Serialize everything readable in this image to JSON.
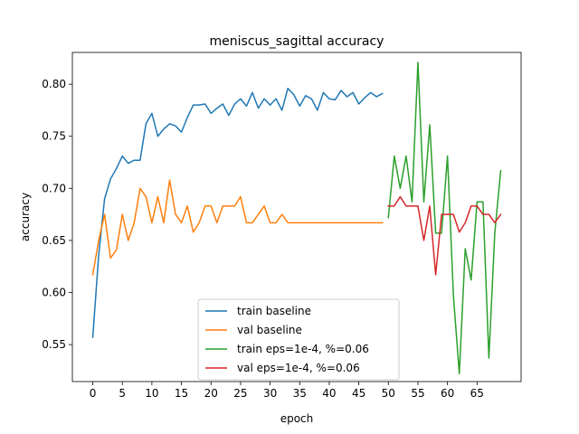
{
  "chart_data": {
    "type": "line",
    "title": "meniscus_sagittal accuracy",
    "xlabel": "epoch",
    "ylabel": "accuracy",
    "xlim": [
      -3.45,
      72.45
    ],
    "ylim": [
      0.5145,
      0.8305
    ],
    "xticks": [
      0,
      5,
      10,
      15,
      20,
      25,
      30,
      35,
      40,
      45,
      50,
      55,
      60,
      65
    ],
    "yticks": [
      0.55,
      0.6,
      0.65,
      0.7,
      0.75,
      0.8
    ],
    "ytick_labels": [
      "0.55",
      "0.60",
      "0.65",
      "0.70",
      "0.75",
      "0.80"
    ],
    "legend_position": "lower center",
    "series": [
      {
        "name": "train baseline",
        "color": "#1f77b4",
        "x": [
          0,
          1,
          2,
          3,
          4,
          5,
          6,
          7,
          8,
          9,
          10,
          11,
          12,
          13,
          14,
          15,
          16,
          17,
          18,
          19,
          20,
          21,
          22,
          23,
          24,
          25,
          26,
          27,
          28,
          29,
          30,
          31,
          32,
          33,
          34,
          35,
          36,
          37,
          38,
          39,
          40,
          41,
          42,
          43,
          44,
          45,
          46,
          47,
          48,
          49
        ],
        "y": [
          0.557,
          0.636,
          0.69,
          0.709,
          0.719,
          0.731,
          0.724,
          0.727,
          0.727,
          0.762,
          0.772,
          0.75,
          0.757,
          0.762,
          0.76,
          0.754,
          0.768,
          0.78,
          0.78,
          0.781,
          0.772,
          0.777,
          0.781,
          0.77,
          0.781,
          0.786,
          0.779,
          0.792,
          0.777,
          0.786,
          0.78,
          0.786,
          0.775,
          0.796,
          0.79,
          0.779,
          0.789,
          0.786,
          0.775,
          0.792,
          0.786,
          0.785,
          0.794,
          0.788,
          0.792,
          0.781,
          0.787,
          0.792,
          0.788,
          0.791
        ]
      },
      {
        "name": "val baseline",
        "color": "#ff7f0e",
        "x": [
          0,
          1,
          2,
          3,
          4,
          5,
          6,
          7,
          8,
          9,
          10,
          11,
          12,
          13,
          14,
          15,
          16,
          17,
          18,
          19,
          20,
          21,
          22,
          23,
          24,
          25,
          26,
          27,
          28,
          29,
          30,
          31,
          32,
          33,
          34,
          35,
          36,
          37,
          38,
          39,
          40,
          41,
          42,
          43,
          44,
          45,
          46,
          47,
          48,
          49
        ],
        "y": [
          0.617,
          0.65,
          0.675,
          0.633,
          0.641,
          0.675,
          0.65,
          0.667,
          0.7,
          0.692,
          0.667,
          0.692,
          0.667,
          0.708,
          0.675,
          0.667,
          0.683,
          0.658,
          0.667,
          0.683,
          0.683,
          0.667,
          0.683,
          0.683,
          0.683,
          0.692,
          0.667,
          0.667,
          0.675,
          0.683,
          0.667,
          0.667,
          0.675,
          0.667,
          0.667,
          0.667,
          0.667,
          0.667,
          0.667,
          0.667,
          0.667,
          0.667,
          0.667,
          0.667,
          0.667,
          0.667,
          0.667,
          0.667,
          0.667,
          0.667
        ]
      },
      {
        "name": "train eps=1e-4, %=0.06",
        "color": "#2ca02c",
        "x": [
          50,
          51,
          52,
          53,
          54,
          55,
          56,
          57,
          58,
          59,
          60,
          61,
          62,
          63,
          64,
          65,
          66,
          67,
          68,
          69
        ],
        "y": [
          0.672,
          0.731,
          0.7,
          0.731,
          0.687,
          0.821,
          0.687,
          0.761,
          0.657,
          0.657,
          0.731,
          0.597,
          0.522,
          0.642,
          0.612,
          0.687,
          0.687,
          0.537,
          0.657,
          0.717
        ]
      },
      {
        "name": "val eps=1e-4, %=0.06",
        "color": "#d62728",
        "x": [
          50,
          51,
          52,
          53,
          54,
          55,
          56,
          57,
          58,
          59,
          60,
          61,
          62,
          63,
          64,
          65,
          66,
          67,
          68,
          69
        ],
        "y": [
          0.683,
          0.683,
          0.692,
          0.683,
          0.683,
          0.683,
          0.65,
          0.683,
          0.617,
          0.675,
          0.675,
          0.675,
          0.658,
          0.667,
          0.683,
          0.683,
          0.675,
          0.675,
          0.667,
          0.675
        ]
      }
    ]
  }
}
